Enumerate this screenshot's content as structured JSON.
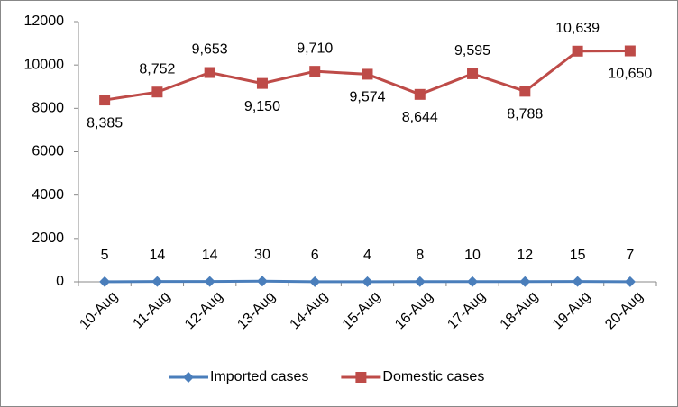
{
  "chart_data": {
    "type": "line",
    "categories": [
      "10-Aug",
      "11-Aug",
      "12-Aug",
      "13-Aug",
      "14-Aug",
      "15-Aug",
      "16-Aug",
      "17-Aug",
      "18-Aug",
      "19-Aug",
      "20-Aug"
    ],
    "series": [
      {
        "name": "Imported cases",
        "color": "#4a7ebb",
        "marker": "diamond",
        "values": [
          5,
          14,
          14,
          30,
          6,
          4,
          8,
          10,
          12,
          15,
          7
        ]
      },
      {
        "name": "Domestic cases",
        "color": "#be4b48",
        "marker": "square",
        "values": [
          8385,
          8752,
          9653,
          9150,
          9710,
          9574,
          8644,
          9595,
          8788,
          10639,
          10650
        ],
        "value_labels": [
          "8,385",
          "8,752",
          "9,653",
          "9,150",
          "9,710",
          "9,574",
          "8,644",
          "9,595",
          "8,788",
          "10,639",
          "10,650"
        ]
      }
    ],
    "ylim": [
      0,
      12000
    ],
    "yticks": [
      0,
      2000,
      4000,
      6000,
      8000,
      10000,
      12000
    ],
    "grid": false,
    "legend": "bottom"
  }
}
